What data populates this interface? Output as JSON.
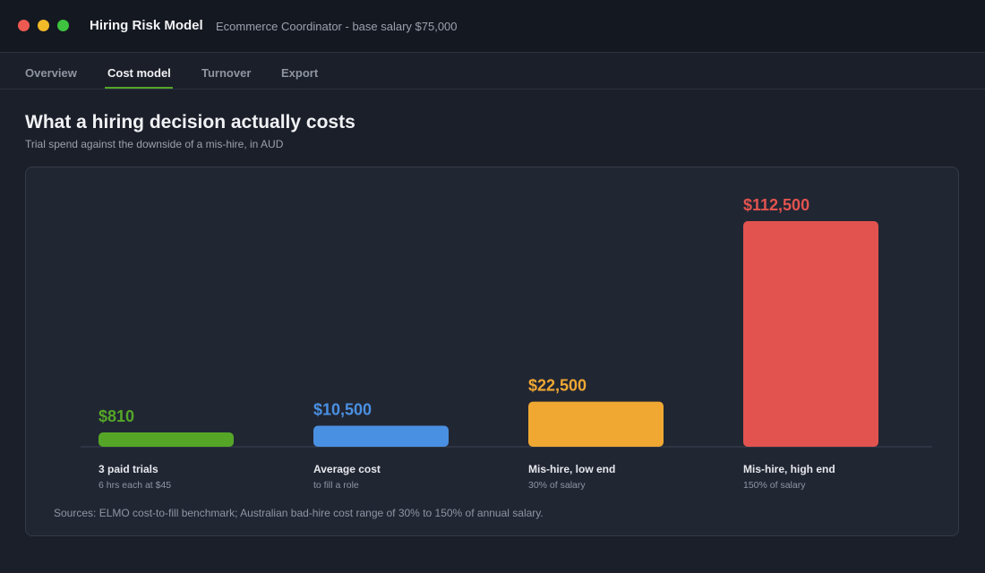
{
  "window": {
    "title": "Hiring Risk Model",
    "subtitle": "Ecommerce Coordinator - base salary $75,000"
  },
  "tabs": [
    {
      "label": "Overview",
      "active": false
    },
    {
      "label": "Cost model",
      "active": true
    },
    {
      "label": "Turnover",
      "active": false
    },
    {
      "label": "Export",
      "active": false
    }
  ],
  "page": {
    "heading": "What a hiring decision actually costs",
    "subheading": "Trial spend against the downside of a mis-hire, in AUD"
  },
  "colors": {
    "accent": "#55a627",
    "bar_trials": "#55a627",
    "bar_average": "#4a90e2",
    "bar_low": "#f0a832",
    "bar_high": "#e2534f"
  },
  "chart_data": {
    "type": "bar",
    "ylim": [
      0,
      112500
    ],
    "bars": [
      {
        "category": "3 paid trials",
        "note": "6 hrs each at $45",
        "value": 810,
        "value_label": "$810",
        "color": "#55a627"
      },
      {
        "category": "Average cost",
        "note": "to fill a role",
        "value": 10500,
        "value_label": "$10,500",
        "color": "#4a90e2"
      },
      {
        "category": "Mis-hire, low end",
        "note": "30% of salary",
        "value": 22500,
        "value_label": "$22,500",
        "color": "#f0a832"
      },
      {
        "category": "Mis-hire, high end",
        "note": "150% of salary",
        "value": 112500,
        "value_label": "$112,500",
        "color": "#e2534f"
      }
    ],
    "source": "Sources: ELMO cost-to-fill benchmark; Australian bad-hire cost range of 30% to 150% of annual salary."
  }
}
